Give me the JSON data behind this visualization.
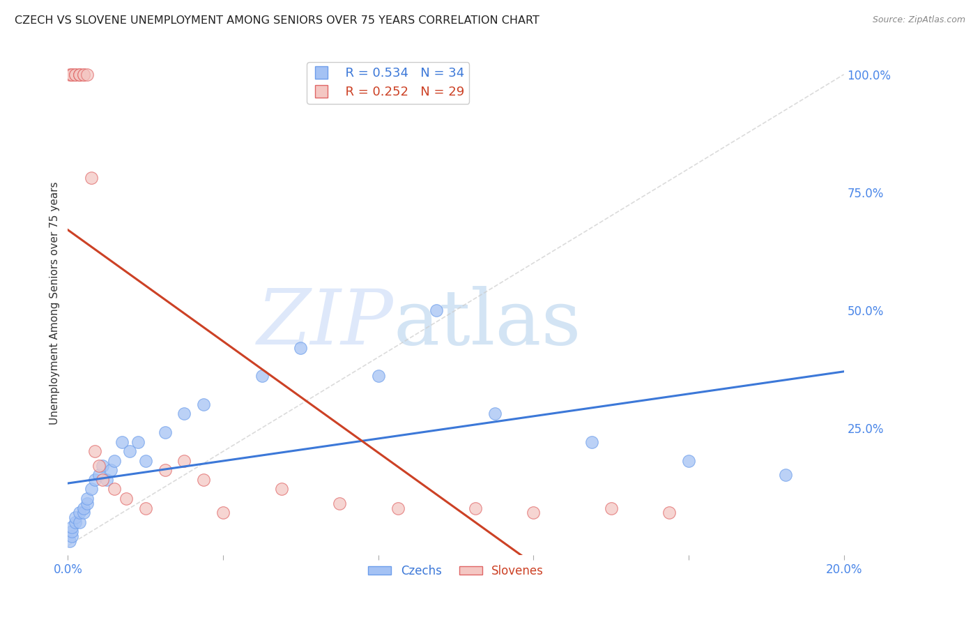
{
  "title": "CZECH VS SLOVENE UNEMPLOYMENT AMONG SENIORS OVER 75 YEARS CORRELATION CHART",
  "source": "Source: ZipAtlas.com",
  "ylabel": "Unemployment Among Seniors over 75 years",
  "legend_blue_r": "R = 0.534",
  "legend_blue_n": "N = 34",
  "legend_pink_r": "R = 0.252",
  "legend_pink_n": "N = 29",
  "legend_blue_label": "Czechs",
  "legend_pink_label": "Slovenes",
  "blue_fill_color": "#a4c2f4",
  "pink_fill_color": "#f4c7c3",
  "blue_edge_color": "#6d9eeb",
  "pink_edge_color": "#e06666",
  "blue_line_color": "#3c78d8",
  "pink_line_color": "#cc4125",
  "grid_color": "#d9d9d9",
  "axis_color": "#4a86e8",
  "background_color": "#ffffff",
  "ref_line_color": "#cccccc",
  "czechs_x": [
    0.0005,
    0.001,
    0.001,
    0.001,
    0.002,
    0.002,
    0.003,
    0.003,
    0.004,
    0.004,
    0.005,
    0.005,
    0.006,
    0.007,
    0.008,
    0.009,
    0.01,
    0.011,
    0.012,
    0.014,
    0.016,
    0.018,
    0.02,
    0.025,
    0.03,
    0.035,
    0.05,
    0.06,
    0.08,
    0.095,
    0.11,
    0.135,
    0.16,
    0.185
  ],
  "czechs_y": [
    0.01,
    0.02,
    0.03,
    0.04,
    0.05,
    0.06,
    0.05,
    0.07,
    0.07,
    0.08,
    0.09,
    0.1,
    0.12,
    0.14,
    0.15,
    0.17,
    0.14,
    0.16,
    0.18,
    0.22,
    0.2,
    0.22,
    0.18,
    0.24,
    0.28,
    0.3,
    0.36,
    0.42,
    0.36,
    0.5,
    0.28,
    0.22,
    0.18,
    0.15
  ],
  "slovenes_x": [
    0.0005,
    0.001,
    0.001,
    0.002,
    0.002,
    0.003,
    0.003,
    0.003,
    0.004,
    0.004,
    0.005,
    0.006,
    0.007,
    0.008,
    0.009,
    0.012,
    0.015,
    0.02,
    0.025,
    0.03,
    0.035,
    0.04,
    0.055,
    0.07,
    0.085,
    0.105,
    0.12,
    0.14,
    0.155
  ],
  "slovenes_y": [
    1.0,
    1.0,
    1.0,
    1.0,
    1.0,
    1.0,
    1.0,
    1.0,
    1.0,
    1.0,
    1.0,
    0.78,
    0.2,
    0.17,
    0.14,
    0.12,
    0.1,
    0.08,
    0.16,
    0.18,
    0.14,
    0.07,
    0.12,
    0.09,
    0.08,
    0.08,
    0.07,
    0.08,
    0.07
  ],
  "xlim": [
    0.0,
    0.2
  ],
  "ylim": [
    -0.02,
    1.05
  ],
  "x_ticks": [
    0.0,
    0.04,
    0.08,
    0.12,
    0.16,
    0.2
  ],
  "x_tick_labels": [
    "0.0%",
    "",
    "",
    "",
    "",
    "20.0%"
  ],
  "y_ticks_right": [
    0.25,
    0.5,
    0.75,
    1.0
  ],
  "y_tick_labels_right": [
    "25.0%",
    "50.0%",
    "75.0%",
    "100.0%"
  ]
}
